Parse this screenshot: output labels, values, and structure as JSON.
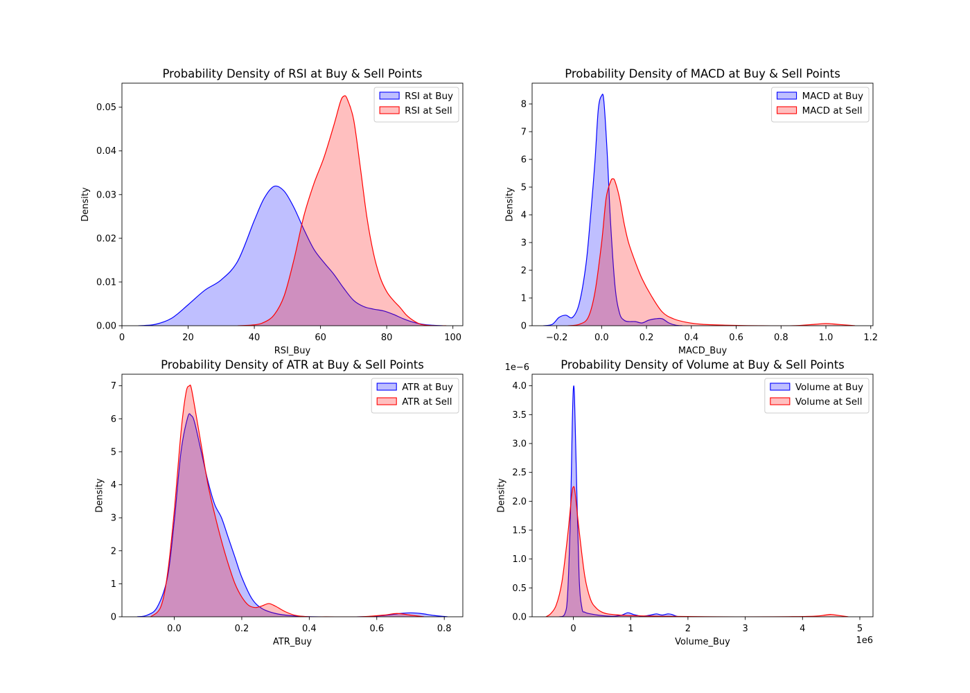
{
  "chart_data": [
    {
      "type": "area",
      "title": "Probability Density of RSI at Buy & Sell Points",
      "xlabel": "RSI_Buy",
      "ylabel": "Density",
      "xlim": [
        0,
        103
      ],
      "ylim": [
        0,
        0.0555
      ],
      "xticks": [
        0,
        20,
        40,
        60,
        80,
        100
      ],
      "xtick_labels": [
        "0",
        "20",
        "40",
        "60",
        "80",
        "100"
      ],
      "yticks": [
        0,
        0.01,
        0.02,
        0.03,
        0.04,
        0.05
      ],
      "ytick_labels": [
        "0.00",
        "0.01",
        "0.02",
        "0.03",
        "0.04",
        "0.05"
      ],
      "legend_position": "top-right",
      "multiplier_label": "",
      "series": [
        {
          "name": "RSI at Buy",
          "color": "#0000ff",
          "fill": "#0000ff",
          "x": [
            5,
            10,
            15,
            20,
            25,
            30,
            35,
            40,
            43,
            46,
            49,
            52,
            55,
            58,
            61,
            64,
            67,
            70,
            73,
            76,
            79,
            82,
            85,
            88,
            91,
            94,
            97
          ],
          "y": [
            0,
            0.0003,
            0.0017,
            0.0048,
            0.0081,
            0.0105,
            0.0148,
            0.0241,
            0.0292,
            0.0319,
            0.0308,
            0.027,
            0.022,
            0.0175,
            0.0145,
            0.0118,
            0.0086,
            0.0058,
            0.0044,
            0.0038,
            0.0034,
            0.0026,
            0.0016,
            0.0008,
            0.0003,
            0.0001,
            0
          ]
        },
        {
          "name": "RSI at Sell",
          "color": "#ff0000",
          "fill": "#ff0000",
          "x": [
            35,
            40,
            43,
            46,
            49,
            52,
            55,
            58,
            61,
            64,
            66,
            67,
            68,
            70,
            72,
            74,
            76,
            78,
            80,
            82,
            84,
            86,
            88,
            90,
            92,
            95,
            98
          ],
          "y": [
            0,
            0.0002,
            0.0008,
            0.0025,
            0.0068,
            0.0152,
            0.0252,
            0.0325,
            0.0384,
            0.0458,
            0.0512,
            0.0525,
            0.052,
            0.0472,
            0.0364,
            0.0249,
            0.0166,
            0.0111,
            0.0078,
            0.0058,
            0.0042,
            0.0024,
            0.0012,
            0.0004,
            0.0001,
            0,
            0
          ]
        }
      ]
    },
    {
      "type": "area",
      "title": "Probability Density of MACD at Buy & Sell Points",
      "xlabel": "MACD_Buy",
      "ylabel": "Density",
      "xlim": [
        -0.31,
        1.21
      ],
      "ylim": [
        0,
        8.75
      ],
      "xticks": [
        -0.2,
        0,
        0.2,
        0.4,
        0.6,
        0.8,
        1.0,
        1.2
      ],
      "xtick_labels": [
        "−0.2",
        "0.0",
        "0.2",
        "0.4",
        "0.6",
        "0.8",
        "1.0",
        "1.2"
      ],
      "yticks": [
        0,
        1,
        2,
        3,
        4,
        5,
        6,
        7,
        8
      ],
      "ytick_labels": [
        "0",
        "1",
        "2",
        "3",
        "4",
        "5",
        "6",
        "7",
        "8"
      ],
      "legend_position": "top-right",
      "multiplier_label": "",
      "series": [
        {
          "name": "MACD at Buy",
          "color": "#0000ff",
          "fill": "#0000ff",
          "x": [
            -0.26,
            -0.22,
            -0.19,
            -0.16,
            -0.13,
            -0.1,
            -0.07,
            -0.05,
            -0.03,
            -0.015,
            0,
            0.01,
            0.025,
            0.04,
            0.06,
            0.08,
            0.1,
            0.12,
            0.15,
            0.18,
            0.21,
            0.24,
            0.27,
            0.3,
            0.33,
            0.36
          ],
          "y": [
            0,
            0.05,
            0.3,
            0.38,
            0.3,
            0.8,
            2.2,
            3.9,
            5.9,
            7.8,
            8.3,
            8.1,
            6.2,
            3.7,
            1.4,
            0.45,
            0.2,
            0.15,
            0.15,
            0.1,
            0.2,
            0.25,
            0.25,
            0.1,
            0.02,
            0
          ]
        },
        {
          "name": "MACD at Sell",
          "color": "#ff0000",
          "fill": "#ff0000",
          "x": [
            -0.15,
            -0.1,
            -0.06,
            -0.03,
            0,
            0.02,
            0.04,
            0.05,
            0.06,
            0.08,
            0.1,
            0.12,
            0.15,
            0.18,
            0.22,
            0.27,
            0.32,
            0.38,
            0.45,
            0.55,
            0.7,
            0.85,
            0.95,
            1.0,
            1.05,
            1.1,
            1.13
          ],
          "y": [
            0,
            0.05,
            0.3,
            1.2,
            3.0,
            4.6,
            5.2,
            5.3,
            5.2,
            4.6,
            3.7,
            3.0,
            2.3,
            1.7,
            1.1,
            0.5,
            0.25,
            0.12,
            0.05,
            0.02,
            0,
            0,
            0.05,
            0.08,
            0.05,
            0.02,
            0
          ]
        }
      ]
    },
    {
      "type": "area",
      "title": "Probability Density of ATR at Buy & Sell Points",
      "xlabel": "ATR_Buy",
      "ylabel": "Density",
      "xlim": [
        -0.155,
        0.855
      ],
      "ylim": [
        0,
        7.35
      ],
      "xticks": [
        0,
        0.2,
        0.4,
        0.6,
        0.8
      ],
      "xtick_labels": [
        "0.0",
        "0.2",
        "0.4",
        "0.6",
        "0.8"
      ],
      "yticks": [
        0,
        1,
        2,
        3,
        4,
        5,
        6,
        7
      ],
      "ytick_labels": [
        "0",
        "1",
        "2",
        "3",
        "4",
        "5",
        "6",
        "7"
      ],
      "legend_position": "top-right",
      "multiplier_label": "",
      "series": [
        {
          "name": "ATR at Buy",
          "color": "#0000ff",
          "fill": "#0000ff",
          "x": [
            -0.11,
            -0.08,
            -0.05,
            -0.02,
            0,
            0.02,
            0.04,
            0.05,
            0.06,
            0.08,
            0.1,
            0.12,
            0.14,
            0.16,
            0.18,
            0.2,
            0.23,
            0.26,
            0.3,
            0.35,
            0.42,
            0.55,
            0.62,
            0.67,
            0.7,
            0.73,
            0.77,
            0.81
          ],
          "y": [
            0,
            0.05,
            0.3,
            1.2,
            2.9,
            5.0,
            6.05,
            6.1,
            5.9,
            5.0,
            4.1,
            3.4,
            3.0,
            2.4,
            1.8,
            1.2,
            0.55,
            0.25,
            0.1,
            0.03,
            0,
            0,
            0.04,
            0.1,
            0.12,
            0.1,
            0.04,
            0
          ]
        },
        {
          "name": "ATR at Sell",
          "color": "#ff0000",
          "fill": "#ff0000",
          "x": [
            -0.07,
            -0.04,
            -0.02,
            0,
            0.02,
            0.035,
            0.045,
            0.05,
            0.06,
            0.08,
            0.1,
            0.12,
            0.14,
            0.16,
            0.18,
            0.2,
            0.22,
            0.24,
            0.26,
            0.28,
            0.3,
            0.33,
            0.36,
            0.4,
            0.45,
            0.55,
            0.62,
            0.66,
            0.7,
            0.74
          ],
          "y": [
            0,
            0.3,
            1.3,
            3.2,
            5.6,
            6.8,
            7.0,
            6.95,
            6.4,
            5.2,
            4.0,
            3.1,
            2.3,
            1.6,
            1.0,
            0.6,
            0.35,
            0.28,
            0.33,
            0.4,
            0.32,
            0.15,
            0.04,
            0,
            0,
            0,
            0.05,
            0.1,
            0.05,
            0
          ]
        }
      ]
    },
    {
      "type": "area",
      "title": "Probability Density of Volume at Buy & Sell Points",
      "xlabel": "Volume_Buy",
      "ylabel": "Density",
      "xlim": [
        -720000,
        5230000
      ],
      "ylim": [
        0,
        4.2
      ],
      "xticks": [
        0,
        1000000,
        2000000,
        3000000,
        4000000,
        5000000
      ],
      "xtick_labels": [
        "0",
        "1",
        "2",
        "3",
        "4",
        "5"
      ],
      "yticks": [
        0,
        0.5,
        1.0,
        1.5,
        2.0,
        2.5,
        3.0,
        3.5,
        4.0
      ],
      "ytick_labels": [
        "0.0",
        "0.5",
        "1.0",
        "1.5",
        "2.0",
        "2.5",
        "3.0",
        "3.5",
        "4.0"
      ],
      "legend_position": "top-right",
      "multiplier_label": "1e−6",
      "x_offset_label": "1e6",
      "series": [
        {
          "name": "Volume at Buy",
          "color": "#0000ff",
          "fill": "#0000ff",
          "x": [
            -250000,
            -150000,
            -100000,
            -50000,
            -20000,
            0,
            20000,
            50000,
            100000,
            150000,
            200000,
            300000,
            500000,
            700000,
            850000,
            950000,
            1050000,
            1200000,
            1350000,
            1450000,
            1550000,
            1650000,
            1720000,
            1800000,
            1900000
          ],
          "y": [
            0,
            0.05,
            0.4,
            1.8,
            3.3,
            3.95,
            3.8,
            2.6,
            0.7,
            0.15,
            0.08,
            0.05,
            0.02,
            0.01,
            0.03,
            0.07,
            0.04,
            0.01,
            0.03,
            0.05,
            0.03,
            0.05,
            0.04,
            0.01,
            0
          ]
        },
        {
          "name": "Volume at Sell",
          "color": "#ff0000",
          "fill": "#ff0000",
          "x": [
            -480000,
            -400000,
            -300000,
            -200000,
            -100000,
            -30000,
            0,
            30000,
            100000,
            200000,
            300000,
            400000,
            500000,
            600000,
            800000,
            1000000,
            1500000,
            2500000,
            3500000,
            4200000,
            4400000,
            4500000,
            4650000,
            4800000
          ],
          "y": [
            0,
            0.05,
            0.2,
            0.6,
            1.4,
            2.1,
            2.25,
            2.15,
            1.5,
            0.7,
            0.3,
            0.15,
            0.08,
            0.05,
            0.03,
            0.02,
            0.01,
            0,
            0,
            0.01,
            0.03,
            0.04,
            0.02,
            0
          ]
        }
      ]
    }
  ]
}
